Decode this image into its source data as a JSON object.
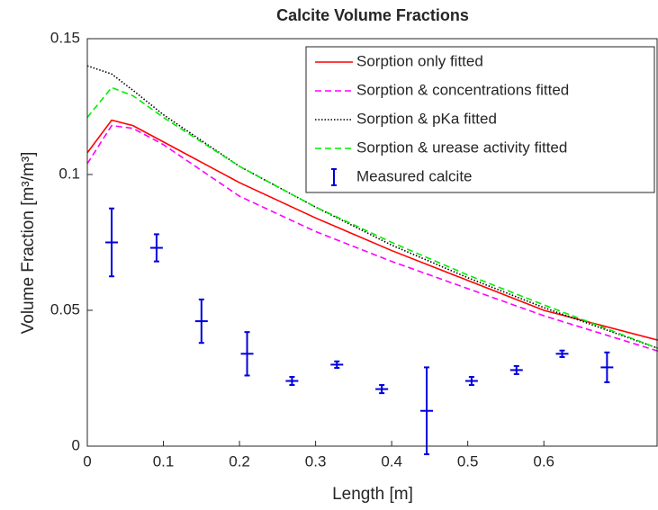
{
  "chart_data": {
    "type": "line",
    "title": "Calcite Volume Fractions",
    "x_label": "Length [m]",
    "y_label": "Volume Fraction [m³/m³]",
    "xlim": [
      0,
      0.75
    ],
    "xticks": [
      0,
      0.1,
      0.2,
      0.3,
      0.4,
      0.5,
      0.6
    ],
    "ylim": [
      0,
      0.15
    ],
    "yticks": [
      0,
      0.05,
      0.1,
      0.15
    ],
    "x": [
      0,
      0.032,
      0.06,
      0.1,
      0.2,
      0.3,
      0.4,
      0.5,
      0.6,
      0.75
    ],
    "series": [
      {
        "name": "Sorption only fitted",
        "color": "#ff0000",
        "dash": "solid",
        "values": [
          0.108,
          0.12,
          0.118,
          0.112,
          0.097,
          0.084,
          0.072,
          0.061,
          0.05,
          0.039
        ]
      },
      {
        "name": "Sorption & concentrations fitted",
        "color": "#ff00ff",
        "dash": "dashed",
        "values": [
          0.104,
          0.118,
          0.117,
          0.111,
          0.092,
          0.079,
          0.068,
          0.058,
          0.048,
          0.035
        ]
      },
      {
        "name": "Sorption & pKa fitted",
        "color": "#000000",
        "dash": "dotted",
        "values": [
          0.14,
          0.137,
          0.131,
          0.122,
          0.103,
          0.088,
          0.074,
          0.062,
          0.051,
          0.036
        ]
      },
      {
        "name": "Sorption & urease activity fitted",
        "color": "#00ee00",
        "dash": "dashed",
        "values": [
          0.121,
          0.132,
          0.129,
          0.121,
          0.103,
          0.088,
          0.075,
          0.063,
          0.052,
          0.036
        ]
      }
    ],
    "errorbar": {
      "name": "Measured calcite",
      "color": "#0000dd",
      "x": [
        0.032,
        0.091,
        0.15,
        0.21,
        0.269,
        0.328,
        0.387,
        0.446,
        0.505,
        0.564,
        0.624,
        0.683
      ],
      "values": [
        0.075,
        0.073,
        0.046,
        0.034,
        0.024,
        0.03,
        0.021,
        0.013,
        0.024,
        0.028,
        0.034,
        0.029
      ],
      "errors": [
        0.0125,
        0.005,
        0.008,
        0.008,
        0.0015,
        0.0012,
        0.0015,
        0.016,
        0.0015,
        0.0015,
        0.0012,
        0.0055
      ]
    },
    "legend": "upper right"
  }
}
